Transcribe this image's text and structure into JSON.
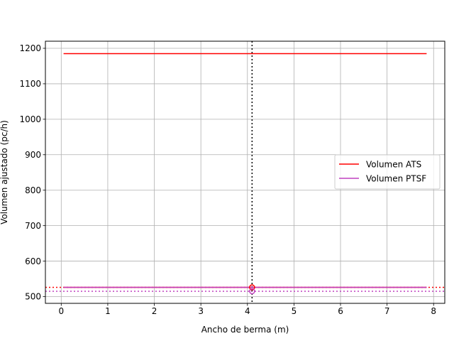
{
  "chart_data": {
    "type": "line",
    "title": "",
    "xlabel": "Ancho de berma (m)",
    "ylabel": "Volumen ajustado (pc/h)",
    "xlim": [
      -0.34,
      8.24
    ],
    "ylim": [
      481,
      1220
    ],
    "xticks": [
      0,
      1,
      2,
      3,
      4,
      5,
      6,
      7,
      8
    ],
    "yticks": [
      500,
      600,
      700,
      800,
      900,
      1000,
      1100,
      1200
    ],
    "grid": true,
    "legend_position": "center-right",
    "series": [
      {
        "name": "Volumen ATS",
        "color": "#ff0000",
        "x": [
          0.05,
          7.85
        ],
        "y": [
          1185,
          1185
        ]
      },
      {
        "name": "",
        "color": "#ff0000",
        "x": [
          0.05,
          7.85
        ],
        "y": [
          526,
          526
        ]
      },
      {
        "name": "Volumen PTSF",
        "color": "#bf40bf",
        "x": [
          0.05,
          7.85
        ],
        "y": [
          526,
          526
        ]
      }
    ],
    "reference_lines": [
      {
        "orientation": "horizontal",
        "value": 526,
        "color": "#ff0000",
        "style": "dotted"
      },
      {
        "orientation": "horizontal",
        "value": 515,
        "color": "#bf40bf",
        "style": "dotted"
      },
      {
        "orientation": "vertical",
        "value": 4.1,
        "color": "#000000",
        "style": "dotted"
      }
    ],
    "markers": [
      {
        "x": 4.1,
        "y": 526,
        "color": "#ff0000"
      },
      {
        "x": 4.1,
        "y": 515,
        "color": "#bf40bf"
      }
    ]
  }
}
